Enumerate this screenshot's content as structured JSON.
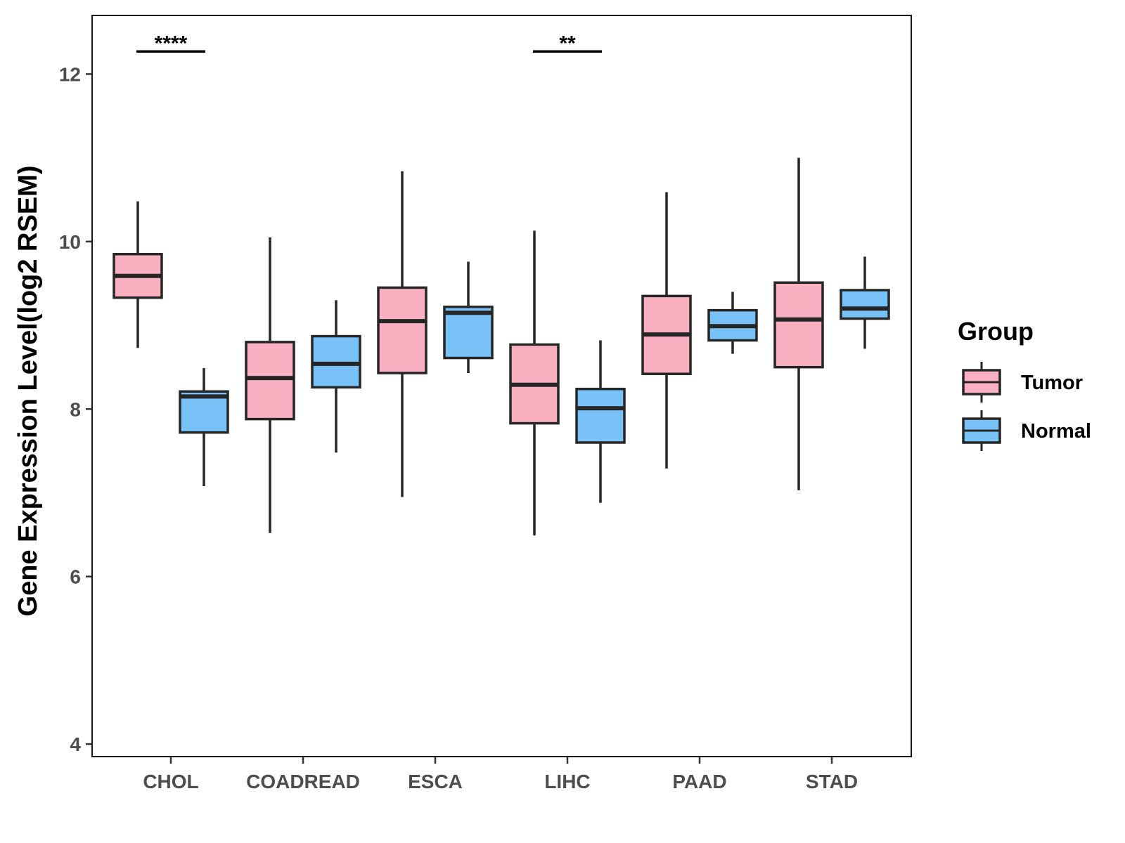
{
  "chart_data": {
    "type": "box",
    "title": "",
    "xlabel": "",
    "ylabel": "Gene Expression Level(log2 RSEM)",
    "ylim": [
      3.85,
      12.7
    ],
    "yticks": [
      4,
      6,
      8,
      10,
      12
    ],
    "categories": [
      "CHOL",
      "COADREAD",
      "ESCA",
      "LIHC",
      "PAAD",
      "STAD"
    ],
    "legend": {
      "title": "Group",
      "position": "right",
      "entries": [
        "Tumor",
        "Normal"
      ]
    },
    "colors": {
      "Tumor": "#F9B0C0",
      "Normal": "#78C2F8",
      "stroke": "#262626"
    },
    "series": [
      {
        "name": "Tumor",
        "boxes": [
          {
            "category": "CHOL",
            "min": 8.73,
            "q1": 9.33,
            "median": 9.59,
            "q3": 9.85,
            "max": 10.48
          },
          {
            "category": "COADREAD",
            "min": 6.52,
            "q1": 7.88,
            "median": 8.37,
            "q3": 8.8,
            "max": 10.05
          },
          {
            "category": "ESCA",
            "min": 6.95,
            "q1": 8.43,
            "median": 9.05,
            "q3": 9.45,
            "max": 10.84
          },
          {
            "category": "LIHC",
            "min": 6.49,
            "q1": 7.83,
            "median": 8.29,
            "q3": 8.77,
            "max": 10.13
          },
          {
            "category": "PAAD",
            "min": 7.29,
            "q1": 8.42,
            "median": 8.89,
            "q3": 9.35,
            "max": 10.59
          },
          {
            "category": "STAD",
            "min": 7.03,
            "q1": 8.5,
            "median": 9.07,
            "q3": 9.51,
            "max": 11.0
          }
        ]
      },
      {
        "name": "Normal",
        "boxes": [
          {
            "category": "CHOL",
            "min": 7.08,
            "q1": 7.72,
            "median": 8.15,
            "q3": 8.21,
            "max": 8.49
          },
          {
            "category": "COADREAD",
            "min": 7.48,
            "q1": 8.26,
            "median": 8.54,
            "q3": 8.87,
            "max": 9.3
          },
          {
            "category": "ESCA",
            "min": 8.43,
            "q1": 8.61,
            "median": 9.15,
            "q3": 9.22,
            "max": 9.76
          },
          {
            "category": "LIHC",
            "min": 6.88,
            "q1": 7.6,
            "median": 8.01,
            "q3": 8.24,
            "max": 8.82
          },
          {
            "category": "PAAD",
            "min": 8.66,
            "q1": 8.82,
            "median": 8.99,
            "q3": 9.18,
            "max": 9.4
          },
          {
            "category": "STAD",
            "min": 8.72,
            "q1": 9.08,
            "median": 9.2,
            "q3": 9.42,
            "max": 9.82
          }
        ]
      }
    ],
    "annotations": [
      {
        "category": "CHOL",
        "label": "****",
        "y": 12.27
      },
      {
        "category": "LIHC",
        "label": "**",
        "y": 12.27
      }
    ]
  }
}
